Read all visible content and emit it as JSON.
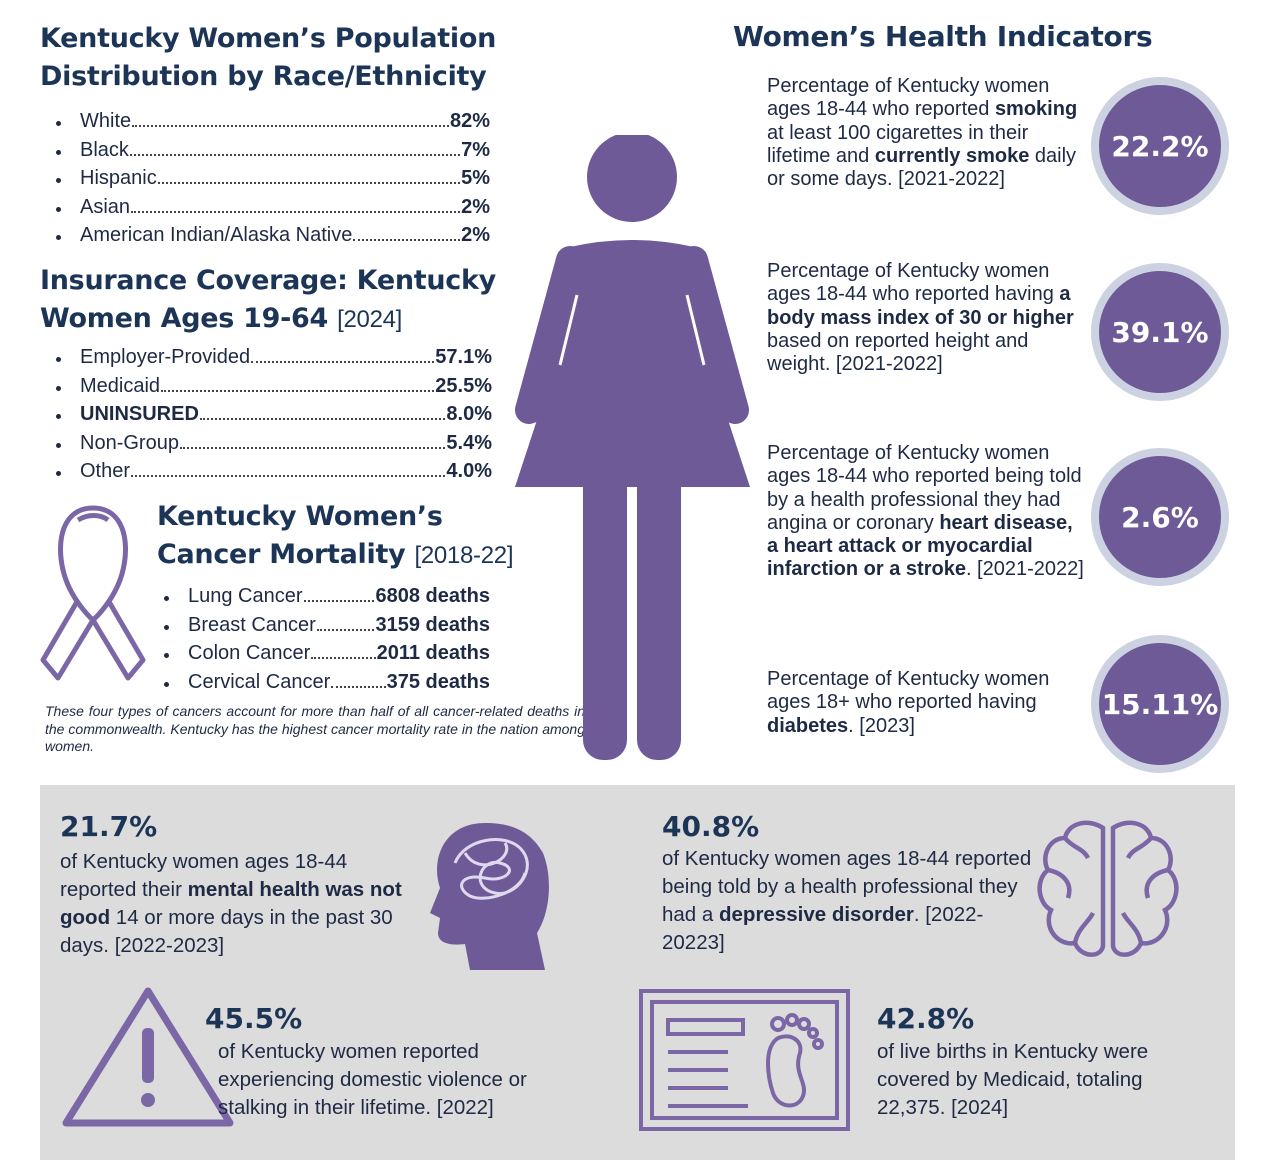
{
  "race": {
    "title": [
      "Kentucky Women’s Population",
      "Distribution by Race/Ethnicity"
    ],
    "items": [
      {
        "label": "White",
        "value": "82%"
      },
      {
        "label": "Black",
        "value": "7%"
      },
      {
        "label": "Hispanic",
        "value": "5%"
      },
      {
        "label": "Asian",
        "value": "2%"
      },
      {
        "label": "American Indian/Alaska Native",
        "value": "2%"
      }
    ]
  },
  "insurance": {
    "title": [
      "Insurance Coverage: Kentucky",
      "Women Ages 19-64"
    ],
    "year": "[2024]",
    "items": [
      {
        "label": "Employer-Provided",
        "value": "57.1%"
      },
      {
        "label": "Medicaid",
        "value": "25.5%"
      },
      {
        "label": "UNINSURED",
        "value": "8.0%",
        "bold": true
      },
      {
        "label": "Non-Group",
        "value": "5.4%"
      },
      {
        "label": "Other",
        "value": "4.0%"
      }
    ]
  },
  "cancer": {
    "title": [
      "Kentucky Women’s",
      "Cancer Mortality"
    ],
    "years": "[2018-22]",
    "items": [
      {
        "label": "Lung Cancer",
        "value": "6808 deaths"
      },
      {
        "label": "Breast Cancer",
        "value": "3159 deaths"
      },
      {
        "label": "Colon Cancer",
        "value": "2011 deaths"
      },
      {
        "label": "Cervical Cancer",
        "value": "375 deaths"
      }
    ],
    "note": "These four types of cancers account for more than half of all cancer-related deaths in the commonwealth. Kentucky has the highest cancer mortality rate in the nation among women."
  },
  "indicators": {
    "title": "Women’s Health Indicators",
    "items": [
      {
        "value": "22.2%",
        "text": [
          "Percentage of Kentucky women ages 18-44 who reported ",
          {
            "b": "smoking"
          },
          " at least 100 cigarettes in their lifetime and ",
          {
            "b": "currently smoke"
          },
          " daily or some days. [2021-2022]"
        ]
      },
      {
        "value": "39.1%",
        "text": [
          "Percentage of Kentucky women ages 18-44 who reported having ",
          {
            "b": "a body mass index of 30 or higher"
          },
          " based on reported height and weight. [2021-2022]"
        ]
      },
      {
        "value": "2.6%",
        "text": [
          "Percentage of Kentucky women ages 18-44 who reported being told by a health professional they had angina or coronary ",
          {
            "b": "heart disease, a heart attack or myocardial infarction or a stroke"
          },
          ". [2021-2022]"
        ]
      },
      {
        "value": "15.11%",
        "text": [
          "Percentage of Kentucky women ages 18+ who reported having ",
          {
            "b": "diabetes"
          },
          ". [2023]"
        ]
      }
    ]
  },
  "stats": [
    {
      "value": "21.7%",
      "text": [
        "of Kentucky women ages 18-44 reported their ",
        {
          "b": "mental health was not good"
        },
        " 14 or more days in the past 30 days. [2022-2023]"
      ]
    },
    {
      "value": "40.8%",
      "text": [
        "of Kentucky women ages 18-44 reported being told by a health professional they had a ",
        {
          "b": "depressive disorder"
        },
        ". [2022-20223]"
      ]
    },
    {
      "value": "45.5%",
      "text": [
        "of Kentucky women reported experiencing domestic violence or stalking in their lifetime. [2022]"
      ]
    },
    {
      "value": "42.8%",
      "text": [
        "of live births in Kentucky were covered by Medicaid, totaling 22,375. [2024]"
      ]
    }
  ]
}
